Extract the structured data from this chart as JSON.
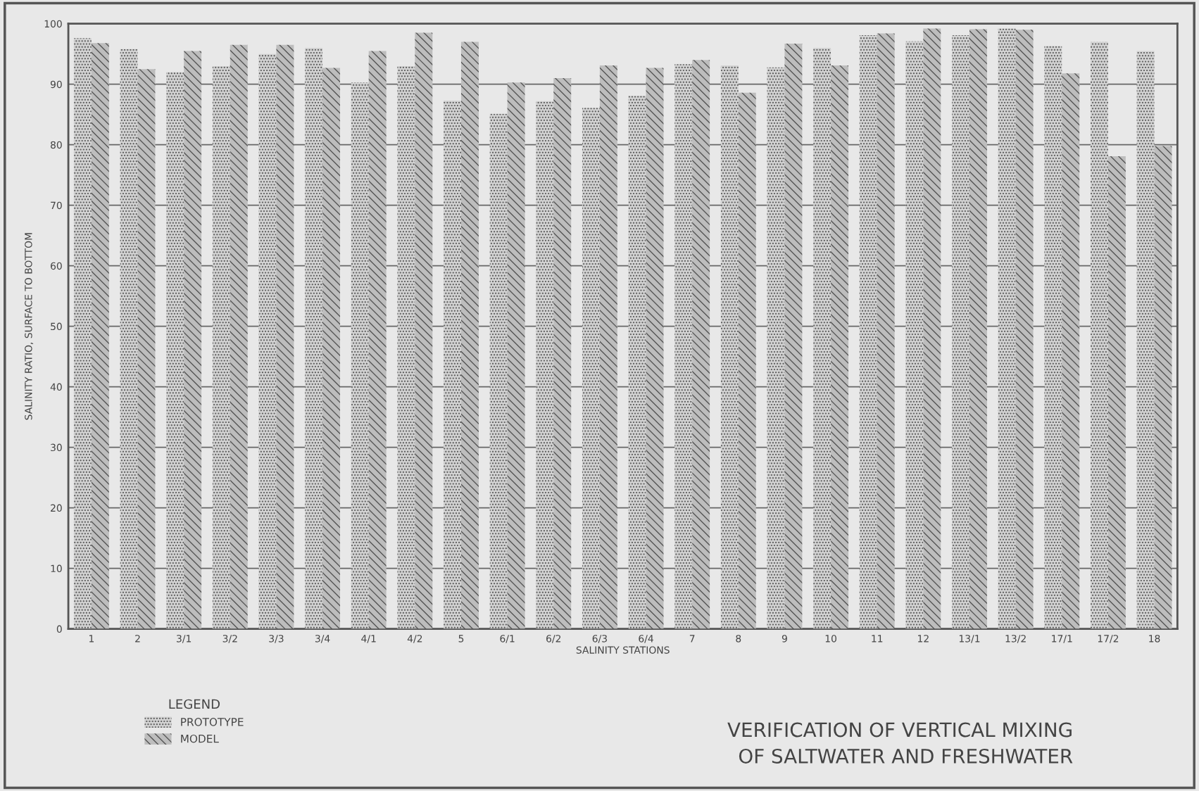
{
  "chart_data": {
    "type": "bar",
    "title": "VERIFICATION OF VERTICAL MIXING\nOF SALTWATER AND FRESHWATER",
    "xlabel": "SALINITY STATIONS",
    "ylabel": "SALINITY RATIO, SURFACE TO BOTTOM",
    "legend_title": "LEGEND",
    "categories": [
      "1",
      "2",
      "3/1",
      "3/2",
      "3/3",
      "3/4",
      "4/1",
      "4/2",
      "5",
      "6/1",
      "6/2",
      "6/3",
      "6/4",
      "7",
      "8",
      "9",
      "10",
      "11",
      "12",
      "13/1",
      "13/2",
      "17/1",
      "17/2",
      "18"
    ],
    "series": [
      {
        "name": "PROTOTYPE",
        "color": "#d2d2d2",
        "values": [
          97.6,
          95.8,
          92.0,
          93.0,
          95.0,
          96.0,
          90.3,
          93.0,
          87.3,
          85.1,
          87.2,
          86.1,
          88.1,
          93.3,
          93.1,
          92.8,
          96.0,
          98.1,
          97.1,
          98.1,
          99.2,
          96.3,
          97.0,
          95.5
        ]
      },
      {
        "name": "MODEL",
        "color": "#bdbdbd",
        "values": [
          96.8,
          92.5,
          95.5,
          96.5,
          96.5,
          92.7,
          95.5,
          98.5,
          97.0,
          90.3,
          91.0,
          93.1,
          92.7,
          94.0,
          88.6,
          96.7,
          93.1,
          98.4,
          99.2,
          99.1,
          99.0,
          91.8,
          78.1,
          79.8
        ]
      }
    ],
    "ylim": [
      0,
      100
    ],
    "yticks": [
      0,
      10,
      20,
      30,
      40,
      50,
      60,
      70,
      80,
      90,
      100
    ],
    "grid": "y",
    "legend": "bottom left"
  }
}
